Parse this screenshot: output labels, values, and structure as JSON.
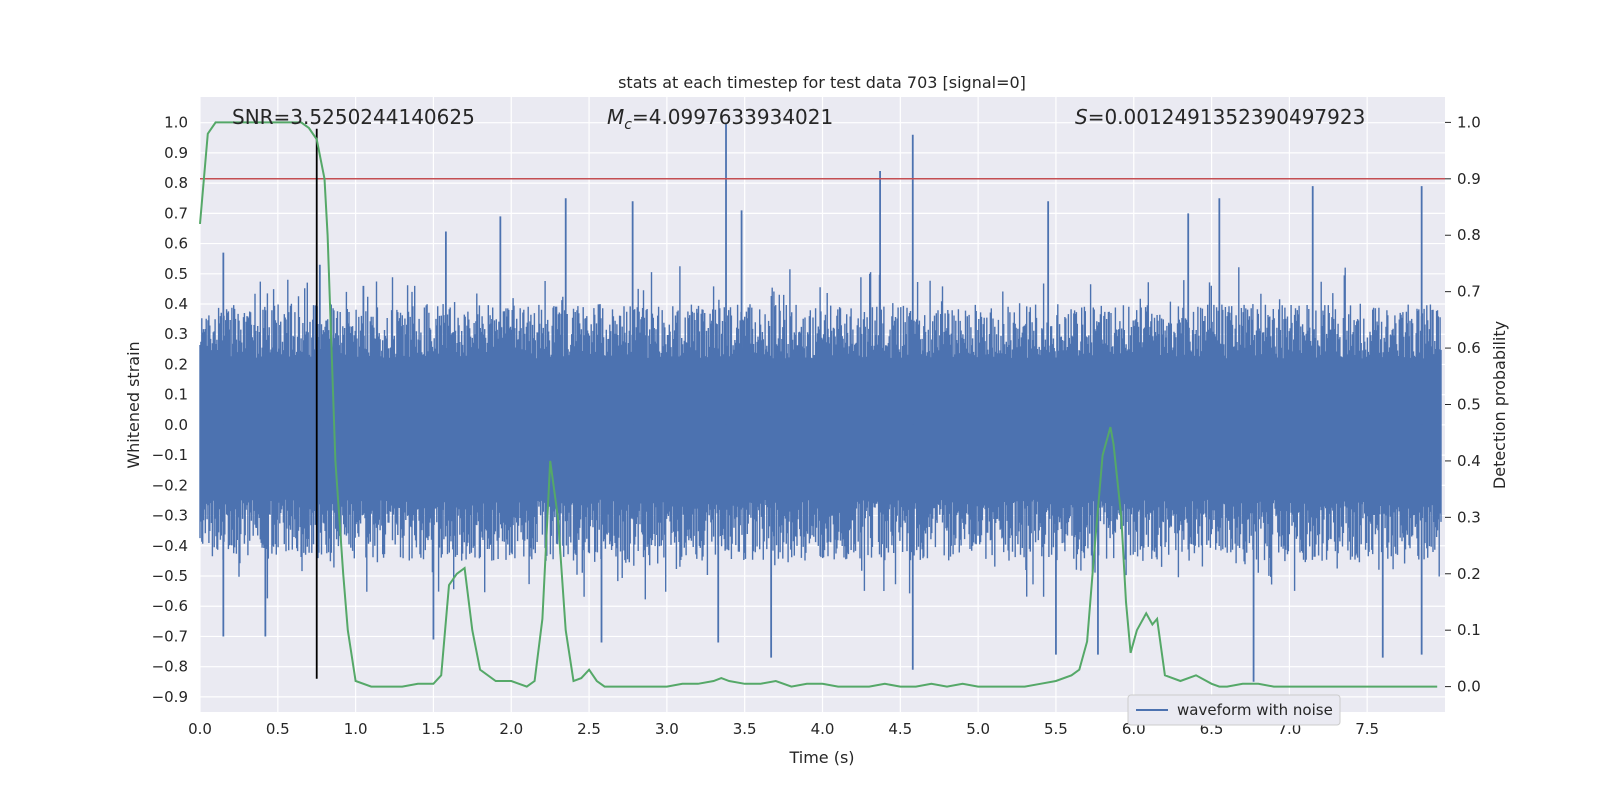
{
  "chart_data": {
    "type": "line",
    "title": "stats at each timestep for test data 703 [signal=0]",
    "xlabel": "Time (s)",
    "ylabel": "Whitened strain",
    "y2label": "Detection probability",
    "xlim": [
      0.0,
      8.0
    ],
    "ylim": [
      -0.95,
      1.085
    ],
    "y2lim": [
      -0.045,
      1.045
    ],
    "x_ticks": [
      "0.0",
      "0.5",
      "1.0",
      "1.5",
      "2.0",
      "2.5",
      "3.0",
      "3.5",
      "4.0",
      "4.5",
      "5.0",
      "5.5",
      "6.0",
      "6.5",
      "7.0",
      "7.5"
    ],
    "y_ticks": [
      "1.0",
      "0.9",
      "0.8",
      "0.7",
      "0.6",
      "0.5",
      "0.4",
      "0.3",
      "0.2",
      "0.1",
      "0.0",
      "−0.1",
      "−0.2",
      "−0.3",
      "−0.4",
      "−0.5",
      "−0.6",
      "−0.7",
      "−0.8",
      "−0.9"
    ],
    "y2_ticks": [
      "1.0",
      "0.9",
      "0.8",
      "0.7",
      "0.6",
      "0.5",
      "0.4",
      "0.3",
      "0.2",
      "0.1",
      "0.0"
    ],
    "grid": true,
    "annotations": {
      "snr": "SNR=3.5250244140625",
      "mc_symbol": "M",
      "mc_sub": "c",
      "mc_value": "=4.0997633934021",
      "s_symbol": "S",
      "s_value": "=0.0012491352390497923"
    },
    "legend": {
      "position": "lower-right",
      "entries": [
        "waveform with noise"
      ]
    },
    "colors": {
      "waveform": "#4c72b0",
      "probability": "#55a868",
      "threshold": "#c44e52",
      "marker": "#000000",
      "axes_bg": "#eaeaf2",
      "grid": "#ffffff"
    },
    "threshold_probability": 0.9,
    "marker_time": 0.75,
    "marker_strain_range": [
      -0.84,
      0.98
    ],
    "waveform": {
      "name": "waveform with noise",
      "envelope_positive": 0.4,
      "envelope_negative": -0.45,
      "peaks": [
        {
          "x": 0.15,
          "y": 0.57
        },
        {
          "x": 0.77,
          "y": 0.53
        },
        {
          "x": 1.05,
          "y": 0.46
        },
        {
          "x": 1.58,
          "y": 0.64
        },
        {
          "x": 1.93,
          "y": 0.69
        },
        {
          "x": 2.35,
          "y": 0.75
        },
        {
          "x": 2.78,
          "y": 0.74
        },
        {
          "x": 3.38,
          "y": 1.0
        },
        {
          "x": 3.48,
          "y": 0.71
        },
        {
          "x": 4.37,
          "y": 0.84
        },
        {
          "x": 4.58,
          "y": 0.96
        },
        {
          "x": 5.45,
          "y": 0.74
        },
        {
          "x": 6.35,
          "y": 0.7
        },
        {
          "x": 6.55,
          "y": 0.75
        },
        {
          "x": 7.15,
          "y": 0.79
        },
        {
          "x": 7.85,
          "y": 0.79
        }
      ],
      "troughs": [
        {
          "x": 0.15,
          "y": -0.7
        },
        {
          "x": 0.42,
          "y": -0.7
        },
        {
          "x": 1.5,
          "y": -0.71
        },
        {
          "x": 2.58,
          "y": -0.72
        },
        {
          "x": 3.33,
          "y": -0.72
        },
        {
          "x": 3.67,
          "y": -0.77
        },
        {
          "x": 4.58,
          "y": -0.81
        },
        {
          "x": 5.5,
          "y": -0.76
        },
        {
          "x": 5.77,
          "y": -0.76
        },
        {
          "x": 6.77,
          "y": -0.85
        },
        {
          "x": 7.6,
          "y": -0.77
        },
        {
          "x": 7.85,
          "y": -0.76
        }
      ]
    },
    "probability": {
      "name": "Detection probability",
      "x": [
        0.0,
        0.05,
        0.1,
        0.15,
        0.2,
        0.3,
        0.4,
        0.5,
        0.6,
        0.65,
        0.7,
        0.75,
        0.8,
        0.82,
        0.87,
        0.92,
        0.95,
        1.0,
        1.1,
        1.2,
        1.3,
        1.4,
        1.45,
        1.5,
        1.55,
        1.6,
        1.65,
        1.7,
        1.75,
        1.8,
        1.9,
        2.0,
        2.05,
        2.1,
        2.15,
        2.2,
        2.25,
        2.3,
        2.35,
        2.4,
        2.45,
        2.5,
        2.55,
        2.6,
        2.7,
        2.8,
        2.9,
        3.0,
        3.1,
        3.2,
        3.3,
        3.35,
        3.4,
        3.5,
        3.6,
        3.7,
        3.8,
        3.9,
        4.0,
        4.1,
        4.2,
        4.3,
        4.4,
        4.5,
        4.6,
        4.7,
        4.8,
        4.9,
        5.0,
        5.1,
        5.2,
        5.3,
        5.4,
        5.5,
        5.6,
        5.65,
        5.7,
        5.75,
        5.8,
        5.85,
        5.87,
        5.92,
        5.95,
        5.98,
        6.02,
        6.08,
        6.12,
        6.15,
        6.2,
        6.3,
        6.4,
        6.5,
        6.55,
        6.6,
        6.7,
        6.8,
        6.9,
        7.0,
        7.2,
        7.5,
        7.8,
        7.95
      ],
      "y": [
        0.82,
        0.98,
        1.0,
        1.0,
        1.0,
        1.0,
        1.0,
        1.0,
        1.0,
        1.0,
        0.99,
        0.97,
        0.9,
        0.8,
        0.4,
        0.2,
        0.1,
        0.01,
        0.0,
        0.0,
        0.0,
        0.005,
        0.005,
        0.005,
        0.02,
        0.18,
        0.2,
        0.21,
        0.1,
        0.03,
        0.01,
        0.01,
        0.005,
        0.0,
        0.01,
        0.12,
        0.4,
        0.3,
        0.1,
        0.01,
        0.015,
        0.03,
        0.01,
        0.0,
        0.0,
        0.0,
        0.0,
        0.0,
        0.005,
        0.005,
        0.01,
        0.015,
        0.01,
        0.005,
        0.005,
        0.01,
        0.0,
        0.005,
        0.005,
        0.0,
        0.0,
        0.0,
        0.005,
        0.0,
        0.0,
        0.005,
        0.0,
        0.005,
        0.0,
        0.0,
        0.0,
        0.0,
        0.005,
        0.01,
        0.02,
        0.03,
        0.08,
        0.25,
        0.41,
        0.46,
        0.43,
        0.3,
        0.15,
        0.06,
        0.1,
        0.13,
        0.11,
        0.12,
        0.02,
        0.01,
        0.02,
        0.005,
        0.0,
        0.0,
        0.005,
        0.005,
        0.0,
        0.0,
        0.0,
        0.0,
        0.0,
        0.0
      ]
    }
  }
}
